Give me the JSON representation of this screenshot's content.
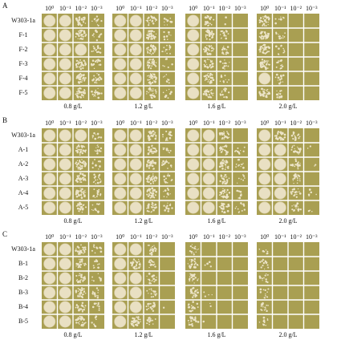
{
  "panels": [
    {
      "letter": "A",
      "rows": [
        "W303-1a",
        "F-1",
        "F-2",
        "F-3",
        "F-4",
        "F-5"
      ],
      "concentrations": [
        "0.8 g/L",
        "1.2 g/L",
        "1.6 g/L",
        "2.0 g/L"
      ]
    },
    {
      "letter": "B",
      "rows": [
        "W303-1a",
        "A-1",
        "A-2",
        "A-3",
        "A-4",
        "A-5"
      ],
      "concentrations": [
        "0.8 g/L",
        "1.2 g/L",
        "1.6 g/L",
        "2.0 g/L"
      ]
    },
    {
      "letter": "C",
      "rows": [
        "W303-1a",
        "B-1",
        "B-2",
        "B-3",
        "B-4",
        "B-5"
      ],
      "concentrations": [
        "0.8 g/L",
        "1.2 g/L",
        "1.6 g/L",
        "2.0 g/L"
      ]
    }
  ],
  "dilutions": [
    "10⁰",
    "10⁻¹",
    "10⁻²",
    "10⁻³"
  ]
}
